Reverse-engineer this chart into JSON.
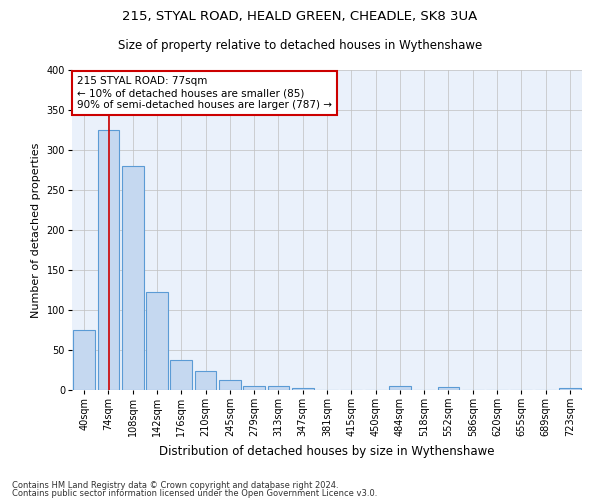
{
  "title1": "215, STYAL ROAD, HEALD GREEN, CHEADLE, SK8 3UA",
  "title2": "Size of property relative to detached houses in Wythenshawe",
  "xlabel": "Distribution of detached houses by size in Wythenshawe",
  "ylabel": "Number of detached properties",
  "footer1": "Contains HM Land Registry data © Crown copyright and database right 2024.",
  "footer2": "Contains public sector information licensed under the Open Government Licence v3.0.",
  "bin_labels": [
    "40sqm",
    "74sqm",
    "108sqm",
    "142sqm",
    "176sqm",
    "210sqm",
    "245sqm",
    "279sqm",
    "313sqm",
    "347sqm",
    "381sqm",
    "415sqm",
    "450sqm",
    "484sqm",
    "518sqm",
    "552sqm",
    "586sqm",
    "620sqm",
    "655sqm",
    "689sqm",
    "723sqm"
  ],
  "bar_values": [
    75,
    325,
    280,
    123,
    38,
    24,
    12,
    5,
    5,
    2,
    0,
    0,
    0,
    5,
    0,
    4,
    0,
    0,
    0,
    0,
    3
  ],
  "bar_color": "#c5d8f0",
  "bar_edge_color": "#5b9bd5",
  "grid_color": "#c0c0c0",
  "bg_color": "#eaf1fb",
  "red_line_x": 1.03,
  "annotation_text": "215 STYAL ROAD: 77sqm\n← 10% of detached houses are smaller (85)\n90% of semi-detached houses are larger (787) →",
  "annotation_box_color": "#ffffff",
  "annotation_border_color": "#cc0000",
  "ylim": [
    0,
    400
  ],
  "yticks": [
    0,
    50,
    100,
    150,
    200,
    250,
    300,
    350,
    400
  ],
  "title1_fontsize": 9.5,
  "title2_fontsize": 8.5,
  "xlabel_fontsize": 8.5,
  "ylabel_fontsize": 8,
  "tick_fontsize": 7,
  "footer_fontsize": 6,
  "ann_fontsize": 7.5
}
